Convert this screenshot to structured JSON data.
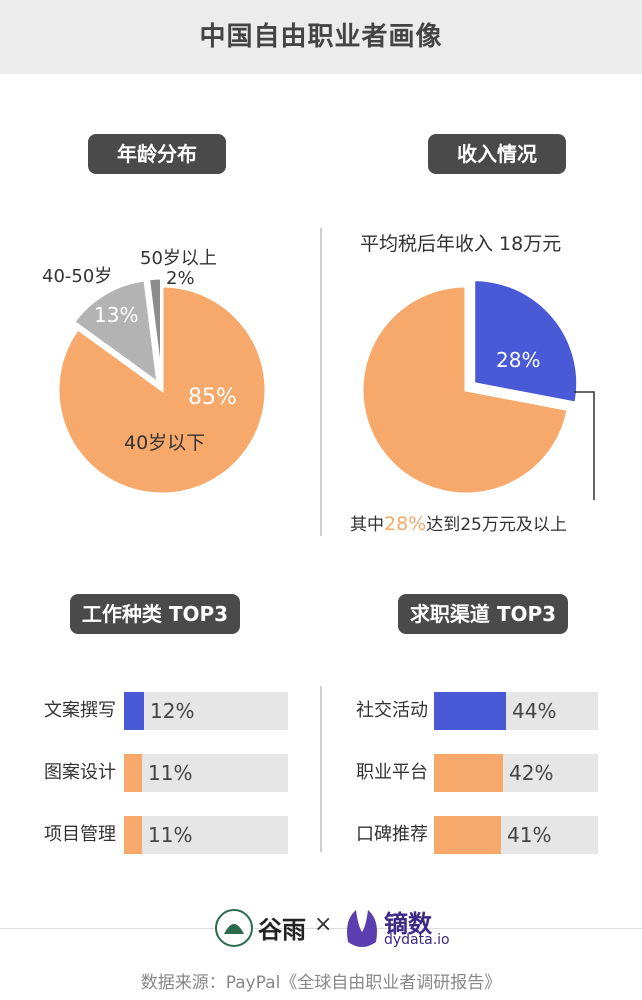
{
  "title": "中国自由职业者画像",
  "sections": {
    "age": {
      "heading": "年龄分布"
    },
    "income": {
      "heading": "收入情况",
      "avg_label": "平均税后年收入 18万元",
      "note_prefix": "其中",
      "note_highlight": "28%",
      "note_suffix": "达到25万元及以上"
    },
    "work": {
      "heading": "工作种类 TOP3"
    },
    "channel": {
      "heading": "求职渠道 TOP3"
    }
  },
  "chart_data": [
    {
      "type": "pie",
      "title": "年龄分布",
      "slices": [
        {
          "label": "40岁以下",
          "value": 85,
          "value_label": "85%",
          "color": "#f7a96b"
        },
        {
          "label": "40-50岁",
          "value": 13,
          "value_label": "13%",
          "color": "#b3b3b3"
        },
        {
          "label": "50岁以上",
          "value": 2,
          "value_label": "2%",
          "color": "#8c8c8c"
        }
      ]
    },
    {
      "type": "pie",
      "title": "收入情况",
      "slices": [
        {
          "label": "25万元及以上",
          "value": 28,
          "value_label": "28%",
          "color": "#4a59d6"
        },
        {
          "label": "",
          "value": 72,
          "value_label": "",
          "color": "#f7a96b"
        }
      ]
    },
    {
      "type": "bar",
      "title": "工作种类 TOP3",
      "categories": [
        "文案撰写",
        "图案设计",
        "项目管理"
      ],
      "values": [
        12,
        11,
        11
      ],
      "value_labels": [
        "12%",
        "11%",
        "11%"
      ],
      "colors": [
        "#4a59d6",
        "#f7a96b",
        "#f7a96b"
      ]
    },
    {
      "type": "bar",
      "title": "求职渠道 TOP3",
      "categories": [
        "社交活动",
        "职业平台",
        "口碑推荐"
      ],
      "values": [
        44,
        42,
        41
      ],
      "value_labels": [
        "44%",
        "42%",
        "41%"
      ],
      "colors": [
        "#4a59d6",
        "#f7a96b",
        "#f7a96b"
      ]
    }
  ],
  "footer": {
    "logo1_text": "谷雨",
    "times": "×",
    "logo2_text": "镝数",
    "logo2_sub": "dydata.io",
    "source": "数据来源：PayPal《全球自由职业者调研报告》"
  }
}
